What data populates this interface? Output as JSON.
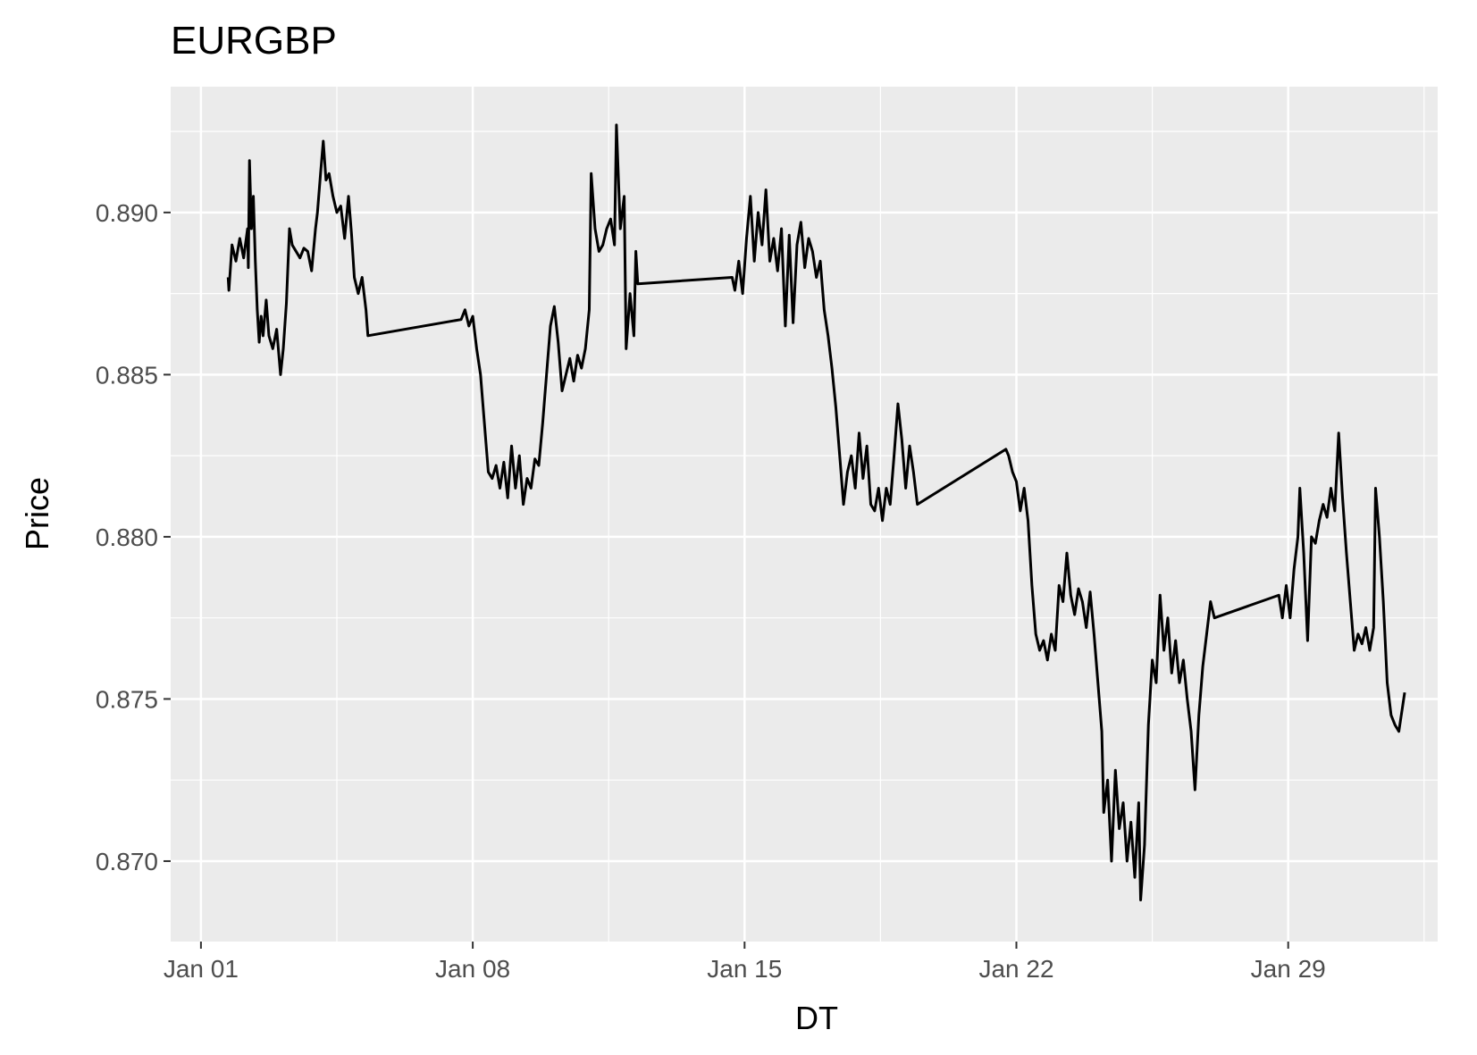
{
  "chart_data": {
    "type": "line",
    "title": "EURGBP",
    "x_label": "DT",
    "y_label": "Price",
    "color": "#000000",
    "grid": true,
    "x": [
      0.7,
      0.72,
      0.8,
      0.9,
      1.0,
      1.1,
      1.2,
      1.22,
      1.25,
      1.3,
      1.35,
      1.4,
      1.45,
      1.5,
      1.55,
      1.6,
      1.68,
      1.75,
      1.85,
      1.95,
      2.05,
      2.12,
      2.2,
      2.28,
      2.35,
      2.45,
      2.55,
      2.65,
      2.75,
      2.85,
      2.95,
      3.0,
      3.08,
      3.15,
      3.22,
      3.3,
      3.4,
      3.5,
      3.6,
      3.7,
      3.8,
      3.88,
      3.95,
      4.05,
      4.15,
      4.25,
      4.3,
      6.7,
      6.8,
      6.9,
      7.0,
      7.1,
      7.2,
      7.3,
      7.4,
      7.5,
      7.6,
      7.7,
      7.8,
      7.9,
      8.0,
      8.1,
      8.2,
      8.3,
      8.4,
      8.5,
      8.6,
      8.7,
      8.8,
      8.9,
      9.0,
      9.1,
      9.2,
      9.3,
      9.4,
      9.5,
      9.6,
      9.7,
      9.8,
      9.9,
      10.0,
      10.05,
      10.15,
      10.25,
      10.35,
      10.45,
      10.55,
      10.65,
      10.7,
      10.8,
      10.9,
      10.95,
      11.05,
      11.15,
      11.2,
      11.25,
      13.68,
      13.75,
      13.85,
      13.95,
      14.05,
      14.15,
      14.25,
      14.35,
      14.45,
      14.55,
      14.65,
      14.75,
      14.85,
      14.95,
      15.05,
      15.15,
      15.25,
      15.35,
      15.45,
      15.55,
      15.65,
      15.75,
      15.85,
      15.95,
      16.05,
      16.15,
      16.25,
      16.35,
      16.45,
      16.55,
      16.65,
      16.75,
      16.85,
      16.95,
      17.05,
      17.15,
      17.25,
      17.35,
      17.45,
      17.55,
      17.65,
      17.75,
      17.85,
      17.95,
      18.05,
      18.15,
      18.25,
      18.35,
      18.45,
      20.73,
      20.8,
      20.9,
      21.0,
      21.1,
      21.2,
      21.3,
      21.4,
      21.5,
      21.6,
      21.7,
      21.8,
      21.9,
      22.0,
      22.1,
      22.2,
      22.3,
      22.4,
      22.5,
      22.6,
      22.7,
      22.8,
      22.9,
      23.0,
      23.1,
      23.2,
      23.25,
      23.35,
      23.45,
      23.55,
      23.65,
      23.75,
      23.85,
      23.95,
      24.05,
      24.15,
      24.2,
      24.3,
      24.4,
      24.5,
      24.6,
      24.7,
      24.8,
      24.9,
      25.0,
      25.1,
      25.2,
      25.3,
      25.4,
      25.5,
      25.6,
      25.7,
      25.8,
      25.9,
      26.0,
      26.1,
      27.76,
      27.85,
      27.95,
      28.05,
      28.15,
      28.25,
      28.3,
      28.4,
      28.5,
      28.6,
      28.7,
      28.8,
      28.9,
      29.0,
      29.1,
      29.2,
      29.3,
      29.4,
      29.5,
      29.6,
      29.7,
      29.8,
      29.9,
      30.0,
      30.1,
      30.2,
      30.25,
      30.35,
      30.45,
      30.55,
      30.65,
      30.75,
      30.85,
      30.95,
      31.0
    ],
    "values": [
      0.888,
      0.8876,
      0.889,
      0.8885,
      0.8892,
      0.8886,
      0.8895,
      0.8883,
      0.8916,
      0.8895,
      0.8905,
      0.8885,
      0.887,
      0.886,
      0.8868,
      0.8862,
      0.8873,
      0.8862,
      0.8858,
      0.8864,
      0.885,
      0.8858,
      0.8872,
      0.8895,
      0.889,
      0.8888,
      0.8886,
      0.8889,
      0.8888,
      0.8882,
      0.8895,
      0.89,
      0.8912,
      0.8922,
      0.891,
      0.8912,
      0.8905,
      0.89,
      0.8902,
      0.8892,
      0.8905,
      0.8893,
      0.888,
      0.8875,
      0.888,
      0.887,
      0.8862,
      0.8867,
      0.887,
      0.8865,
      0.8868,
      0.8858,
      0.885,
      0.8835,
      0.882,
      0.8818,
      0.8822,
      0.8815,
      0.8823,
      0.8812,
      0.8828,
      0.8815,
      0.8825,
      0.881,
      0.8818,
      0.8815,
      0.8824,
      0.8822,
      0.8835,
      0.885,
      0.8865,
      0.8871,
      0.886,
      0.8845,
      0.885,
      0.8855,
      0.8848,
      0.8856,
      0.8852,
      0.8858,
      0.887,
      0.8912,
      0.8895,
      0.8888,
      0.889,
      0.8895,
      0.8898,
      0.889,
      0.8927,
      0.8895,
      0.8905,
      0.8858,
      0.8875,
      0.8862,
      0.8888,
      0.8878,
      0.888,
      0.8876,
      0.8885,
      0.8875,
      0.8892,
      0.8905,
      0.8885,
      0.89,
      0.889,
      0.8907,
      0.8885,
      0.8892,
      0.8882,
      0.8895,
      0.8865,
      0.8893,
      0.8866,
      0.889,
      0.8897,
      0.8883,
      0.8892,
      0.8888,
      0.888,
      0.8885,
      0.887,
      0.8862,
      0.8852,
      0.884,
      0.8825,
      0.881,
      0.882,
      0.8825,
      0.8815,
      0.8832,
      0.8818,
      0.8828,
      0.881,
      0.8808,
      0.8815,
      0.8805,
      0.8815,
      0.881,
      0.8825,
      0.8841,
      0.883,
      0.8815,
      0.8828,
      0.882,
      0.881,
      0.8827,
      0.8825,
      0.882,
      0.8817,
      0.8808,
      0.8815,
      0.8805,
      0.8785,
      0.877,
      0.8765,
      0.8768,
      0.8762,
      0.877,
      0.8765,
      0.8785,
      0.878,
      0.8795,
      0.8782,
      0.8776,
      0.8784,
      0.878,
      0.8772,
      0.8783,
      0.877,
      0.8755,
      0.874,
      0.8715,
      0.8725,
      0.87,
      0.8728,
      0.871,
      0.8718,
      0.87,
      0.8712,
      0.8695,
      0.8718,
      0.8688,
      0.8705,
      0.8742,
      0.8762,
      0.8755,
      0.8782,
      0.8765,
      0.8775,
      0.8758,
      0.8768,
      0.8755,
      0.8762,
      0.875,
      0.874,
      0.8722,
      0.8745,
      0.876,
      0.877,
      0.878,
      0.8775,
      0.8782,
      0.8775,
      0.8785,
      0.8775,
      0.879,
      0.88,
      0.8815,
      0.8795,
      0.8768,
      0.88,
      0.8798,
      0.8805,
      0.881,
      0.8806,
      0.8815,
      0.8808,
      0.8832,
      0.8812,
      0.8795,
      0.878,
      0.8765,
      0.877,
      0.8767,
      0.8772,
      0.8765,
      0.8772,
      0.8815,
      0.88,
      0.878,
      0.8755,
      0.8745,
      0.8742,
      0.874,
      0.8748,
      0.8752
    ],
    "xlim": [
      -0.78,
      31.85
    ],
    "xticks": [
      {
        "value": 0,
        "label": "Jan 01"
      },
      {
        "value": 7,
        "label": "Jan 08"
      },
      {
        "value": 14,
        "label": "Jan 15"
      },
      {
        "value": 21,
        "label": "Jan 22"
      },
      {
        "value": 28,
        "label": "Jan 29"
      }
    ],
    "x_minor_ticks": [
      3.5,
      10.5,
      17.5,
      24.5,
      31.5
    ],
    "ylim": [
      0.86752,
      0.89388
    ],
    "yticks": [
      {
        "value": 0.87,
        "label": "0.870"
      },
      0.875,
      {
        "value": 0.88,
        "label": "0.880"
      },
      0.885,
      {
        "value": 0.89,
        "label": "0.890"
      }
    ],
    "y_minor_ticks": [
      0.8725,
      0.8775,
      0.8825,
      0.8875,
      0.8925
    ]
  }
}
